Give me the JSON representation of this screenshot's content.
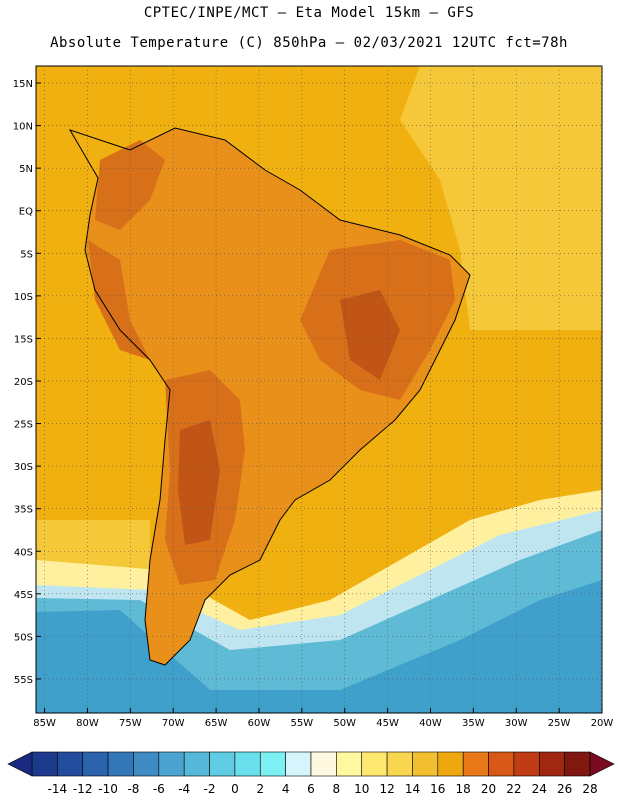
{
  "header": {
    "line1": "CPTEC/INPE/MCT –  Eta Model 15km – GFS",
    "line2": "Absolute Temperature (C) 850hPa – 02/03/2021 12UTC fct=78h"
  },
  "map": {
    "lon_range": [
      -86,
      -20
    ],
    "lat_range": [
      -59,
      17
    ],
    "lon_ticks": [
      "85W",
      "80W",
      "75W",
      "70W",
      "65W",
      "60W",
      "55W",
      "50W",
      "45W",
      "40W",
      "35W",
      "30W",
      "25W",
      "20W"
    ],
    "lat_ticks": [
      "15N",
      "10N",
      "5N",
      "EQ",
      "5S",
      "10S",
      "15S",
      "20S",
      "25S",
      "30S",
      "35S",
      "40S",
      "45S",
      "50S",
      "55S"
    ],
    "background_color": "#f0b010",
    "region_colors": {
      "land_warm": "#e8901a",
      "land_hot": "#d8701a",
      "land_hottest": "#c05516",
      "ocean_north": "#f3b418",
      "ocean_mid": "#f5c83a",
      "cool_band_light": "#fff0a0",
      "cool_band_cyan": "#bfe6f0",
      "cool_band_blue": "#5fbad6",
      "cold": "#3fa0cc"
    }
  },
  "colorbar": {
    "labels": [
      "-14",
      "-12",
      "-10",
      "-8",
      "-6",
      "-4",
      "-2",
      "0",
      "2",
      "4",
      "6",
      "8",
      "10",
      "12",
      "14",
      "16",
      "18",
      "20",
      "22",
      "24",
      "26",
      "28"
    ],
    "colors": [
      "#1c3a8c",
      "#234c9c",
      "#2b63ac",
      "#3477b8",
      "#3f8cc4",
      "#4ba3cf",
      "#55b7d9",
      "#5fcce3",
      "#6ae0ec",
      "#7df0f4",
      "#d6f4fb",
      "#fff8e0",
      "#fff8a0",
      "#ffe870",
      "#f8d650",
      "#f2bf30",
      "#f0a810",
      "#e87818",
      "#d85818",
      "#c03c14",
      "#a02810",
      "#801810"
    ],
    "low_arrow_color": "#1a2a80",
    "high_arrow_color": "#7a0a20"
  }
}
